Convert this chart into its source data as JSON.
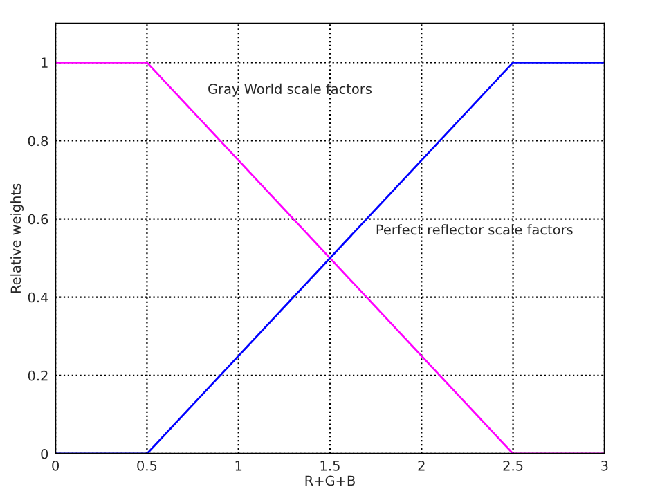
{
  "chart_data": {
    "type": "line",
    "xlabel": "R+G+B",
    "ylabel": "Relative weights",
    "series": [
      {
        "name": "Gray World scale factors",
        "color": "#ff00ff",
        "x": [
          0,
          0.5,
          2.5,
          3
        ],
        "values": [
          1,
          1,
          0,
          0
        ]
      },
      {
        "name": "Perfect reflector scale factors",
        "color": "#0000ff",
        "x": [
          0,
          0.5,
          2.5,
          3
        ],
        "values": [
          0,
          0,
          1,
          1
        ]
      }
    ],
    "xlim": [
      0,
      3
    ],
    "xticks": [
      0,
      0.5,
      1,
      1.5,
      2,
      2.5,
      3
    ],
    "ylim": [
      0,
      1.1
    ],
    "yticks": [
      0,
      0.2,
      0.4,
      0.6,
      0.8,
      1
    ],
    "grid": true,
    "line_style": "solid",
    "marker": "none"
  }
}
